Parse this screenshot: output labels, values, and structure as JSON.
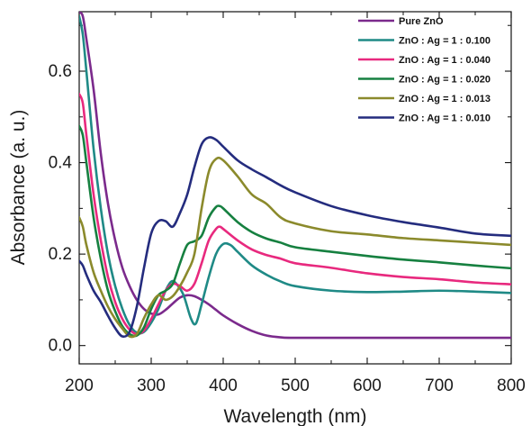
{
  "chart_data": {
    "type": "line",
    "title": "",
    "xlabel": "Wavelength (nm)",
    "ylabel": "Absorbance (a. u.)",
    "xlim": [
      200,
      800
    ],
    "ylim": [
      -0.04,
      0.73
    ],
    "xticks": [
      200,
      300,
      400,
      500,
      600,
      700,
      800
    ],
    "yticks": [
      0.0,
      0.2,
      0.4,
      0.6
    ],
    "ytick_labels": [
      "0.0",
      "0.2",
      "0.4",
      "0.6"
    ],
    "grid": false,
    "legend_position": "top-right",
    "series": [
      {
        "name": "Pure ZnO",
        "color": "#7b2a8c",
        "points": [
          [
            200,
            0.73
          ],
          [
            205,
            0.72
          ],
          [
            210,
            0.67
          ],
          [
            220,
            0.56
          ],
          [
            230,
            0.42
          ],
          [
            240,
            0.31
          ],
          [
            250,
            0.23
          ],
          [
            260,
            0.17
          ],
          [
            270,
            0.13
          ],
          [
            280,
            0.1
          ],
          [
            290,
            0.08
          ],
          [
            300,
            0.07
          ],
          [
            310,
            0.068
          ],
          [
            320,
            0.078
          ],
          [
            330,
            0.092
          ],
          [
            340,
            0.105
          ],
          [
            350,
            0.11
          ],
          [
            360,
            0.108
          ],
          [
            370,
            0.1
          ],
          [
            380,
            0.09
          ],
          [
            390,
            0.078
          ],
          [
            400,
            0.066
          ],
          [
            420,
            0.047
          ],
          [
            440,
            0.032
          ],
          [
            460,
            0.022
          ],
          [
            480,
            0.018
          ],
          [
            500,
            0.017
          ],
          [
            600,
            0.017
          ],
          [
            700,
            0.017
          ],
          [
            800,
            0.017
          ]
        ]
      },
      {
        "name": "ZnO : Ag = 1 : 0.100",
        "color": "#1f8a86",
        "points": [
          [
            200,
            0.72
          ],
          [
            205,
            0.68
          ],
          [
            210,
            0.6
          ],
          [
            220,
            0.43
          ],
          [
            230,
            0.3
          ],
          [
            240,
            0.2
          ],
          [
            250,
            0.13
          ],
          [
            260,
            0.08
          ],
          [
            270,
            0.045
          ],
          [
            280,
            0.028
          ],
          [
            290,
            0.03
          ],
          [
            300,
            0.05
          ],
          [
            310,
            0.08
          ],
          [
            320,
            0.12
          ],
          [
            328,
            0.14
          ],
          [
            335,
            0.135
          ],
          [
            345,
            0.11
          ],
          [
            355,
            0.06
          ],
          [
            362,
            0.048
          ],
          [
            370,
            0.09
          ],
          [
            380,
            0.15
          ],
          [
            390,
            0.2
          ],
          [
            400,
            0.222
          ],
          [
            410,
            0.22
          ],
          [
            420,
            0.205
          ],
          [
            440,
            0.175
          ],
          [
            460,
            0.155
          ],
          [
            480,
            0.14
          ],
          [
            500,
            0.13
          ],
          [
            550,
            0.12
          ],
          [
            600,
            0.117
          ],
          [
            650,
            0.118
          ],
          [
            700,
            0.12
          ],
          [
            750,
            0.118
          ],
          [
            800,
            0.115
          ]
        ]
      },
      {
        "name": "ZnO : Ag = 1 : 0.040",
        "color": "#e8297e",
        "points": [
          [
            200,
            0.55
          ],
          [
            205,
            0.53
          ],
          [
            210,
            0.46
          ],
          [
            220,
            0.33
          ],
          [
            230,
            0.23
          ],
          [
            240,
            0.15
          ],
          [
            250,
            0.095
          ],
          [
            260,
            0.058
          ],
          [
            270,
            0.035
          ],
          [
            280,
            0.025
          ],
          [
            290,
            0.033
          ],
          [
            300,
            0.058
          ],
          [
            310,
            0.09
          ],
          [
            320,
            0.12
          ],
          [
            330,
            0.135
          ],
          [
            340,
            0.13
          ],
          [
            350,
            0.12
          ],
          [
            360,
            0.135
          ],
          [
            370,
            0.18
          ],
          [
            380,
            0.23
          ],
          [
            390,
            0.255
          ],
          [
            395,
            0.26
          ],
          [
            400,
            0.255
          ],
          [
            420,
            0.23
          ],
          [
            440,
            0.21
          ],
          [
            460,
            0.198
          ],
          [
            480,
            0.19
          ],
          [
            500,
            0.18
          ],
          [
            550,
            0.17
          ],
          [
            600,
            0.158
          ],
          [
            650,
            0.15
          ],
          [
            700,
            0.145
          ],
          [
            750,
            0.138
          ],
          [
            800,
            0.134
          ]
        ]
      },
      {
        "name": "ZnO : Ag = 1 : 0.020",
        "color": "#168040",
        "points": [
          [
            200,
            0.48
          ],
          [
            205,
            0.46
          ],
          [
            210,
            0.4
          ],
          [
            220,
            0.28
          ],
          [
            230,
            0.19
          ],
          [
            240,
            0.12
          ],
          [
            250,
            0.075
          ],
          [
            260,
            0.042
          ],
          [
            270,
            0.025
          ],
          [
            280,
            0.022
          ],
          [
            290,
            0.04
          ],
          [
            300,
            0.08
          ],
          [
            310,
            0.11
          ],
          [
            320,
            0.12
          ],
          [
            330,
            0.135
          ],
          [
            340,
            0.18
          ],
          [
            350,
            0.22
          ],
          [
            360,
            0.228
          ],
          [
            370,
            0.24
          ],
          [
            380,
            0.28
          ],
          [
            390,
            0.303
          ],
          [
            395,
            0.305
          ],
          [
            400,
            0.3
          ],
          [
            420,
            0.27
          ],
          [
            440,
            0.248
          ],
          [
            460,
            0.234
          ],
          [
            480,
            0.225
          ],
          [
            500,
            0.215
          ],
          [
            550,
            0.205
          ],
          [
            600,
            0.196
          ],
          [
            650,
            0.188
          ],
          [
            700,
            0.182
          ],
          [
            750,
            0.175
          ],
          [
            800,
            0.169
          ]
        ]
      },
      {
        "name": "ZnO : Ag = 1 : 0.013",
        "color": "#8b8a2c",
        "points": [
          [
            200,
            0.28
          ],
          [
            205,
            0.26
          ],
          [
            210,
            0.22
          ],
          [
            220,
            0.16
          ],
          [
            230,
            0.12
          ],
          [
            240,
            0.085
          ],
          [
            250,
            0.058
          ],
          [
            260,
            0.037
          ],
          [
            270,
            0.02
          ],
          [
            280,
            0.025
          ],
          [
            290,
            0.06
          ],
          [
            300,
            0.09
          ],
          [
            310,
            0.11
          ],
          [
            320,
            0.1
          ],
          [
            330,
            0.108
          ],
          [
            340,
            0.13
          ],
          [
            350,
            0.16
          ],
          [
            360,
            0.2
          ],
          [
            370,
            0.3
          ],
          [
            380,
            0.38
          ],
          [
            390,
            0.408
          ],
          [
            400,
            0.405
          ],
          [
            420,
            0.37
          ],
          [
            440,
            0.33
          ],
          [
            460,
            0.31
          ],
          [
            480,
            0.28
          ],
          [
            500,
            0.267
          ],
          [
            550,
            0.25
          ],
          [
            600,
            0.243
          ],
          [
            650,
            0.235
          ],
          [
            700,
            0.23
          ],
          [
            750,
            0.225
          ],
          [
            800,
            0.22
          ]
        ]
      },
      {
        "name": "ZnO : Ag = 1 : 0.010",
        "color": "#242c7e",
        "points": [
          [
            200,
            0.185
          ],
          [
            205,
            0.175
          ],
          [
            210,
            0.155
          ],
          [
            220,
            0.12
          ],
          [
            230,
            0.095
          ],
          [
            240,
            0.065
          ],
          [
            250,
            0.038
          ],
          [
            260,
            0.02
          ],
          [
            270,
            0.03
          ],
          [
            280,
            0.085
          ],
          [
            290,
            0.17
          ],
          [
            300,
            0.245
          ],
          [
            310,
            0.272
          ],
          [
            320,
            0.272
          ],
          [
            330,
            0.26
          ],
          [
            340,
            0.29
          ],
          [
            350,
            0.33
          ],
          [
            360,
            0.39
          ],
          [
            370,
            0.44
          ],
          [
            380,
            0.455
          ],
          [
            390,
            0.45
          ],
          [
            400,
            0.435
          ],
          [
            420,
            0.405
          ],
          [
            440,
            0.385
          ],
          [
            460,
            0.368
          ],
          [
            480,
            0.35
          ],
          [
            500,
            0.335
          ],
          [
            550,
            0.305
          ],
          [
            600,
            0.285
          ],
          [
            650,
            0.27
          ],
          [
            700,
            0.258
          ],
          [
            750,
            0.245
          ],
          [
            800,
            0.24
          ]
        ]
      }
    ]
  }
}
